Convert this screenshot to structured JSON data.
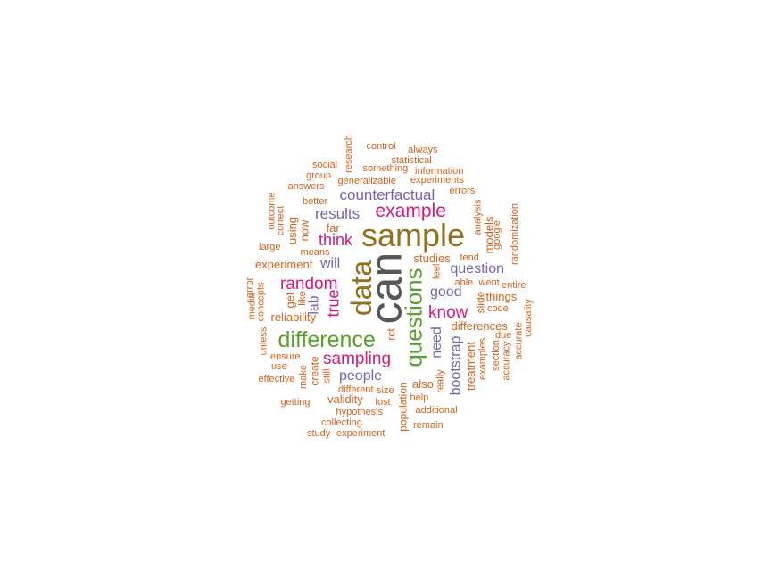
{
  "colors": {
    "dark_gray": "#575757",
    "brown": "#94701C",
    "green": "#5AA02C",
    "magenta": "#D6187B",
    "purple": "#6E68AE",
    "orange": "#D2621D"
  },
  "words": [
    {
      "text": "can",
      "color": "dark_gray",
      "vertical": true
    },
    {
      "text": "sample",
      "color": "brown",
      "vertical": false
    },
    {
      "text": "data",
      "color": "brown",
      "vertical": true
    },
    {
      "text": "questions",
      "color": "green",
      "vertical": true
    },
    {
      "text": "difference",
      "color": "green",
      "vertical": false
    },
    {
      "text": "example",
      "color": "magenta",
      "vertical": false
    },
    {
      "text": "sampling",
      "color": "magenta",
      "vertical": false
    },
    {
      "text": "know",
      "color": "magenta",
      "vertical": false
    },
    {
      "text": "random",
      "color": "magenta",
      "vertical": false
    },
    {
      "text": "think",
      "color": "magenta",
      "vertical": false
    },
    {
      "text": "true",
      "color": "magenta",
      "vertical": true
    },
    {
      "text": "counterfactual",
      "color": "purple",
      "vertical": false
    },
    {
      "text": "results",
      "color": "purple",
      "vertical": false
    },
    {
      "text": "question",
      "color": "purple",
      "vertical": false
    },
    {
      "text": "good",
      "color": "purple",
      "vertical": false
    },
    {
      "text": "people",
      "color": "purple",
      "vertical": false
    },
    {
      "text": "bootstrap",
      "color": "purple",
      "vertical": true
    },
    {
      "text": "need",
      "color": "purple",
      "vertical": true
    },
    {
      "text": "will",
      "color": "purple",
      "vertical": false
    },
    {
      "text": "lab",
      "color": "purple",
      "vertical": true
    },
    {
      "text": "experiment",
      "color": "orange",
      "vertical": false
    },
    {
      "text": "far",
      "color": "orange",
      "vertical": false
    },
    {
      "text": "studies",
      "color": "orange",
      "vertical": false
    },
    {
      "text": "differences",
      "color": "orange",
      "vertical": false
    },
    {
      "text": "things",
      "color": "orange",
      "vertical": false
    },
    {
      "text": "reliability",
      "color": "orange",
      "vertical": false
    },
    {
      "text": "validity",
      "color": "orange",
      "vertical": false
    },
    {
      "text": "also",
      "color": "orange",
      "vertical": false
    },
    {
      "text": "treatment",
      "color": "orange",
      "vertical": true
    },
    {
      "text": "population",
      "color": "orange",
      "vertical": true
    },
    {
      "text": "models",
      "color": "orange",
      "vertical": true
    },
    {
      "text": "slide",
      "color": "orange",
      "vertical": true
    },
    {
      "text": "using",
      "color": "orange",
      "vertical": true
    },
    {
      "text": "now",
      "color": "orange",
      "vertical": true
    },
    {
      "text": "get",
      "color": "orange",
      "vertical": true
    },
    {
      "text": "rct",
      "color": "orange",
      "vertical": true
    },
    {
      "text": "create",
      "color": "orange",
      "vertical": true
    },
    {
      "text": "control",
      "color": "orange",
      "vertical": false
    },
    {
      "text": "always",
      "color": "orange",
      "vertical": false
    },
    {
      "text": "research",
      "color": "orange",
      "vertical": true
    },
    {
      "text": "social",
      "color": "orange",
      "vertical": false
    },
    {
      "text": "statistical",
      "color": "orange",
      "vertical": false
    },
    {
      "text": "something",
      "color": "orange",
      "vertical": false
    },
    {
      "text": "information",
      "color": "orange",
      "vertical": false
    },
    {
      "text": "group",
      "color": "orange",
      "vertical": false
    },
    {
      "text": "generalizable",
      "color": "orange",
      "vertical": false
    },
    {
      "text": "experiments",
      "color": "orange",
      "vertical": false
    },
    {
      "text": "answers",
      "color": "orange",
      "vertical": false
    },
    {
      "text": "errors",
      "color": "orange",
      "vertical": false
    },
    {
      "text": "outcome",
      "color": "orange",
      "vertical": true
    },
    {
      "text": "better",
      "color": "orange",
      "vertical": false
    },
    {
      "text": "analysis",
      "color": "orange",
      "vertical": true
    },
    {
      "text": "correct",
      "color": "orange",
      "vertical": true
    },
    {
      "text": "google",
      "color": "orange",
      "vertical": true
    },
    {
      "text": "randomization",
      "color": "orange",
      "vertical": true
    },
    {
      "text": "large",
      "color": "orange",
      "vertical": false
    },
    {
      "text": "means",
      "color": "orange",
      "vertical": false
    },
    {
      "text": "tend",
      "color": "orange",
      "vertical": false
    },
    {
      "text": "feel",
      "color": "orange",
      "vertical": true
    },
    {
      "text": "able",
      "color": "orange",
      "vertical": false
    },
    {
      "text": "went",
      "color": "orange",
      "vertical": false
    },
    {
      "text": "entire",
      "color": "orange",
      "vertical": false
    },
    {
      "text": "error",
      "color": "orange",
      "vertical": true
    },
    {
      "text": "media",
      "color": "orange",
      "vertical": true
    },
    {
      "text": "concepts",
      "color": "orange",
      "vertical": true
    },
    {
      "text": "like",
      "color": "orange",
      "vertical": true
    },
    {
      "text": "code",
      "color": "orange",
      "vertical": false
    },
    {
      "text": "causality",
      "color": "orange",
      "vertical": true
    },
    {
      "text": "unless",
      "color": "orange",
      "vertical": true
    },
    {
      "text": "due",
      "color": "orange",
      "vertical": false
    },
    {
      "text": "ensure",
      "color": "orange",
      "vertical": false
    },
    {
      "text": "use",
      "color": "orange",
      "vertical": false
    },
    {
      "text": "make",
      "color": "orange",
      "vertical": true
    },
    {
      "text": "still",
      "color": "orange",
      "vertical": true
    },
    {
      "text": "examples",
      "color": "orange",
      "vertical": true
    },
    {
      "text": "section",
      "color": "orange",
      "vertical": true
    },
    {
      "text": "accuracy",
      "color": "orange",
      "vertical": true
    },
    {
      "text": "accurate",
      "color": "orange",
      "vertical": true
    },
    {
      "text": "effective",
      "color": "orange",
      "vertical": false
    },
    {
      "text": "really",
      "color": "orange",
      "vertical": true
    },
    {
      "text": "different",
      "color": "orange",
      "vertical": false
    },
    {
      "text": "size",
      "color": "orange",
      "vertical": false
    },
    {
      "text": "help",
      "color": "orange",
      "vertical": false
    },
    {
      "text": "getting",
      "color": "orange",
      "vertical": false
    },
    {
      "text": "lost",
      "color": "orange",
      "vertical": false
    },
    {
      "text": "hypothesis",
      "color": "orange",
      "vertical": false
    },
    {
      "text": "additional",
      "color": "orange",
      "vertical": false
    },
    {
      "text": "collecting",
      "color": "orange",
      "vertical": false
    },
    {
      "text": "remain",
      "color": "orange",
      "vertical": false
    },
    {
      "text": "study",
      "color": "orange",
      "vertical": false
    },
    {
      "text": "experiment",
      "color": "orange",
      "vertical": false
    }
  ]
}
